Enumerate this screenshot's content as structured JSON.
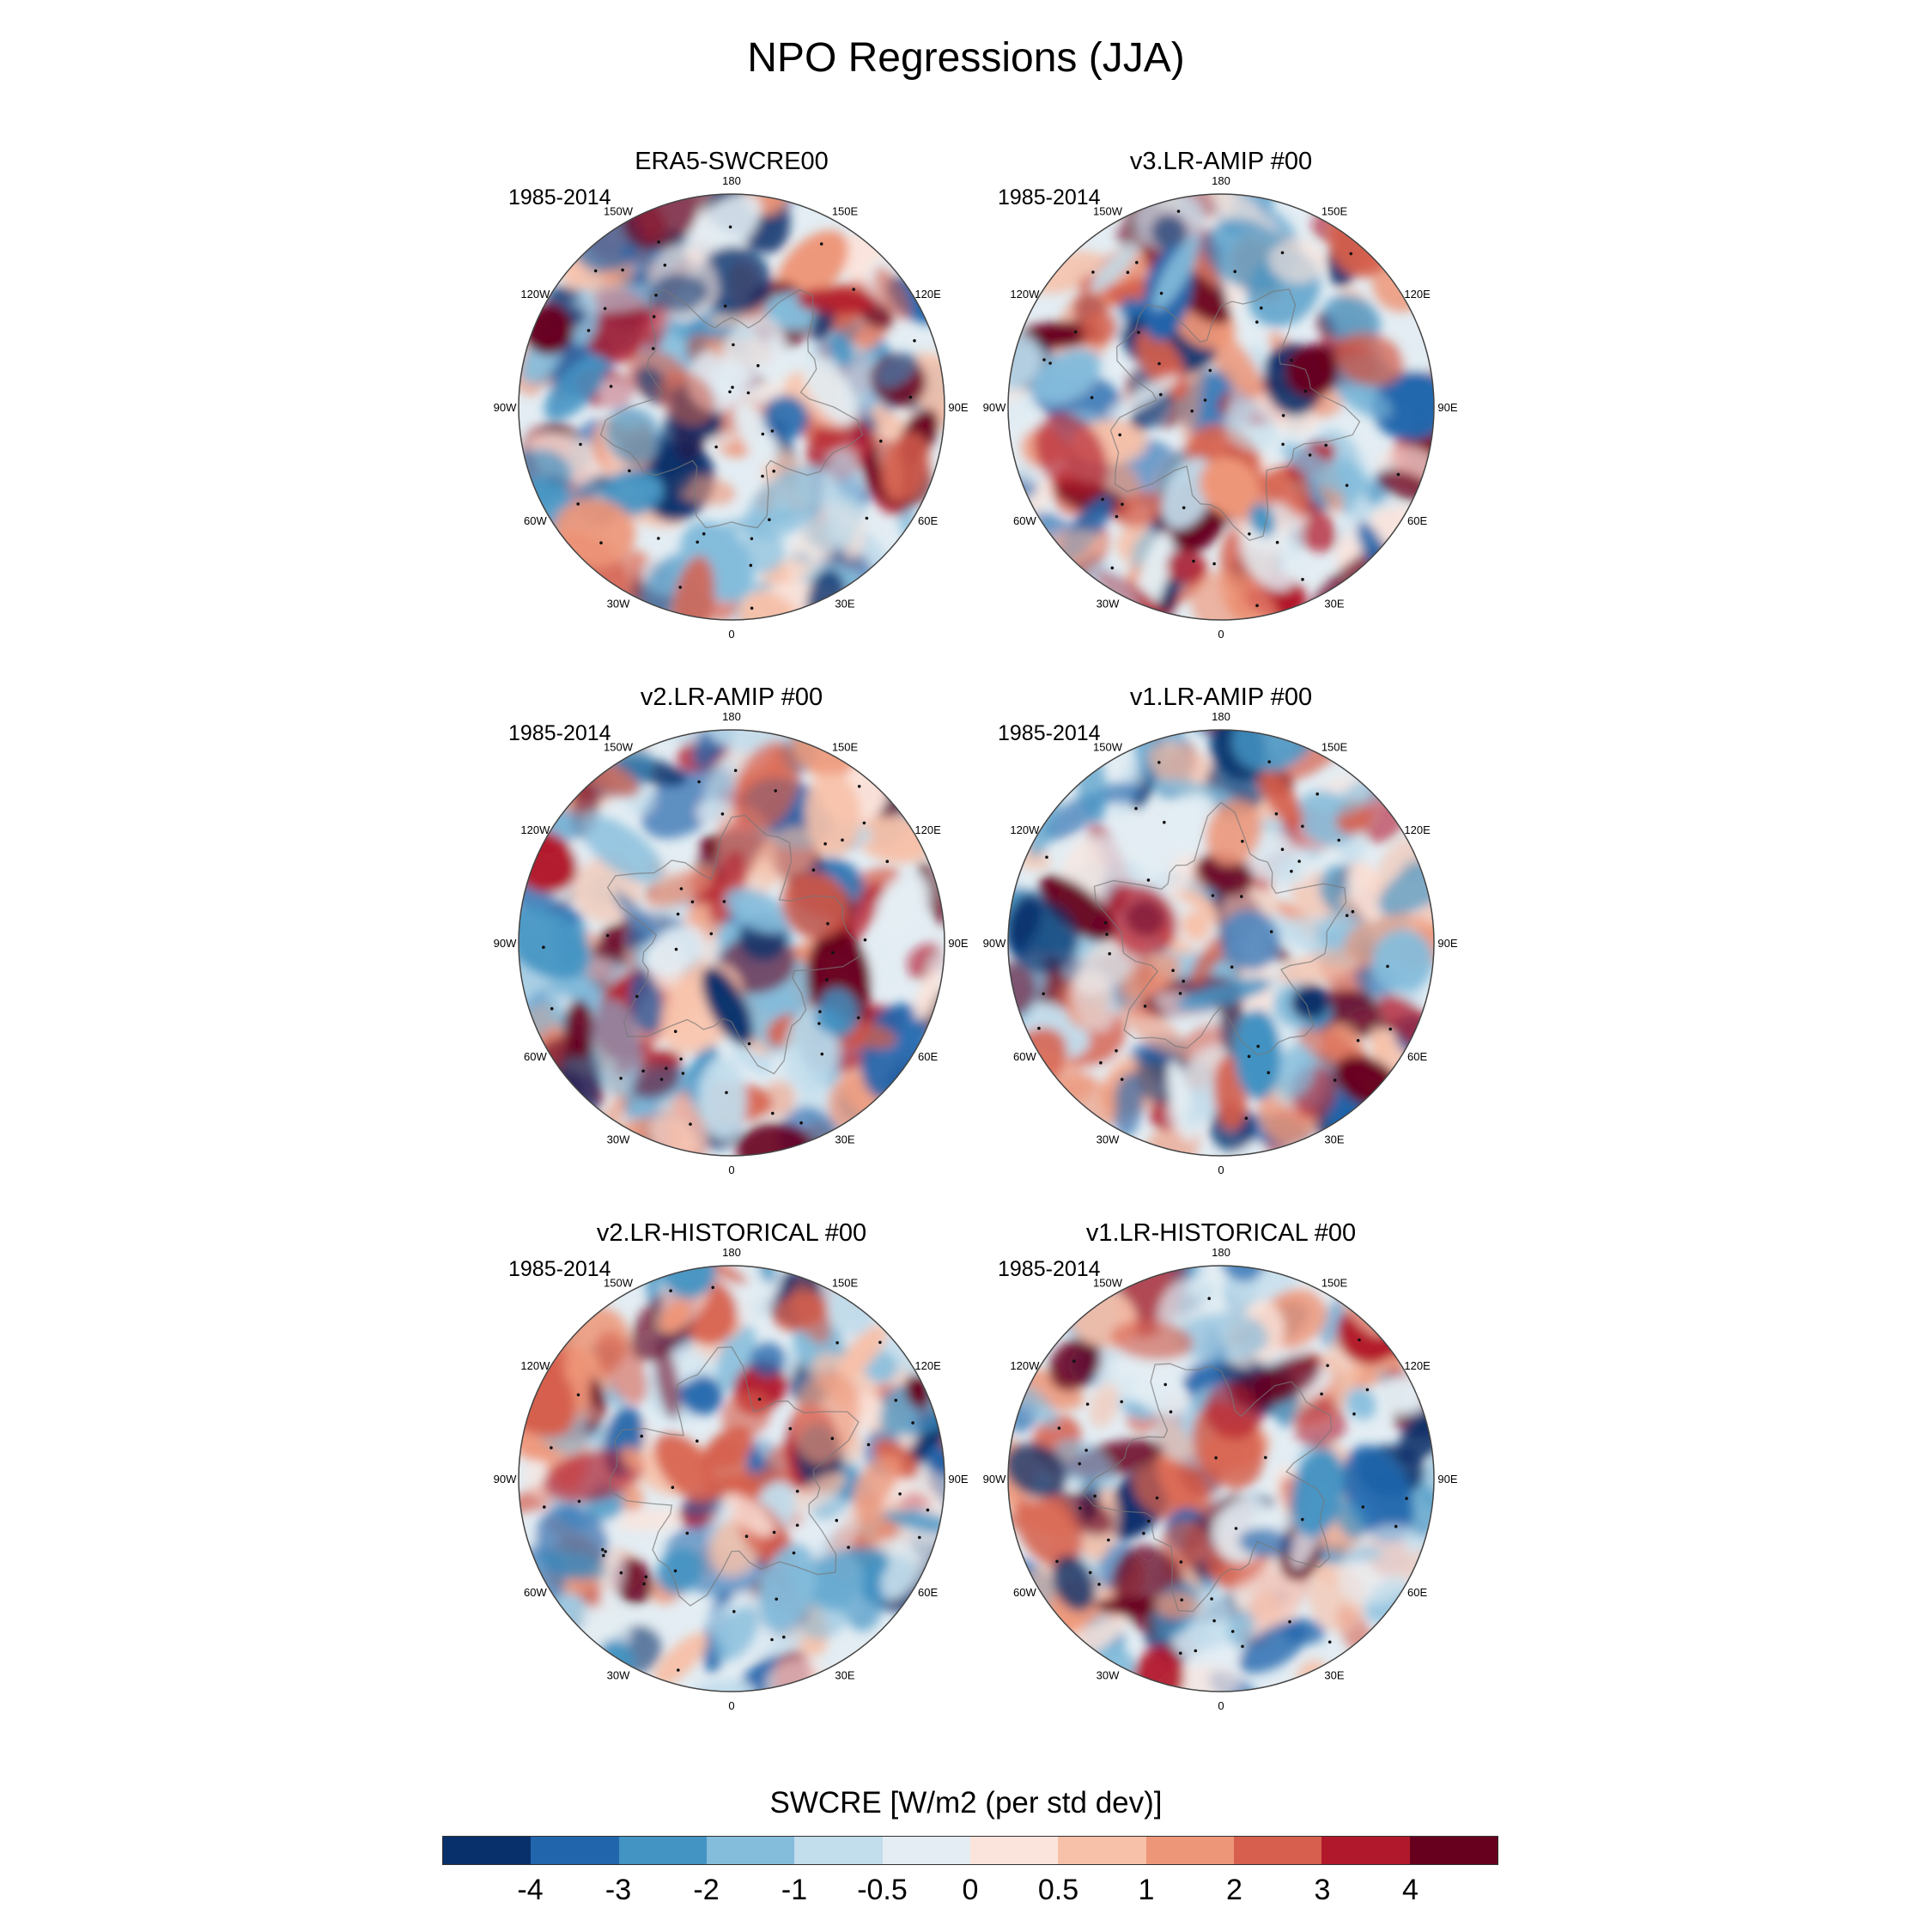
{
  "title": "NPO Regressions (JJA)",
  "panels": [
    {
      "title": "ERA5-SWCRE00",
      "period": "1985-2014"
    },
    {
      "title": "v3.LR-AMIP  #00",
      "period": "1985-2014"
    },
    {
      "title": "v2.LR-AMIP  #00",
      "period": "1985-2014"
    },
    {
      "title": "v1.LR-AMIP  #00",
      "period": "1985-2014"
    },
    {
      "title": "v2.LR-HISTORICAL  #00",
      "period": "1985-2014"
    },
    {
      "title": "v1.LR-HISTORICAL  #00",
      "period": "1985-2014"
    }
  ],
  "longitude_labels": [
    "180",
    "150E",
    "120E",
    "90E",
    "60E",
    "30E",
    "0",
    "30W",
    "60W",
    "90W",
    "120W",
    "150W"
  ],
  "colorbar": {
    "title": "SWCRE [W/m2 (per std dev)]",
    "tick_labels": [
      "-4",
      "-3",
      "-2",
      "-1",
      "-0.5",
      "0",
      "0.5",
      "1",
      "2",
      "3",
      "4"
    ],
    "colors": [
      "#08306b",
      "#2166ac",
      "#4393c3",
      "#84bcdb",
      "#c2ddec",
      "#e3edf3",
      "#fbe4db",
      "#f7c0a8",
      "#ee9678",
      "#d6604d",
      "#b2182b",
      "#67001f"
    ]
  }
}
